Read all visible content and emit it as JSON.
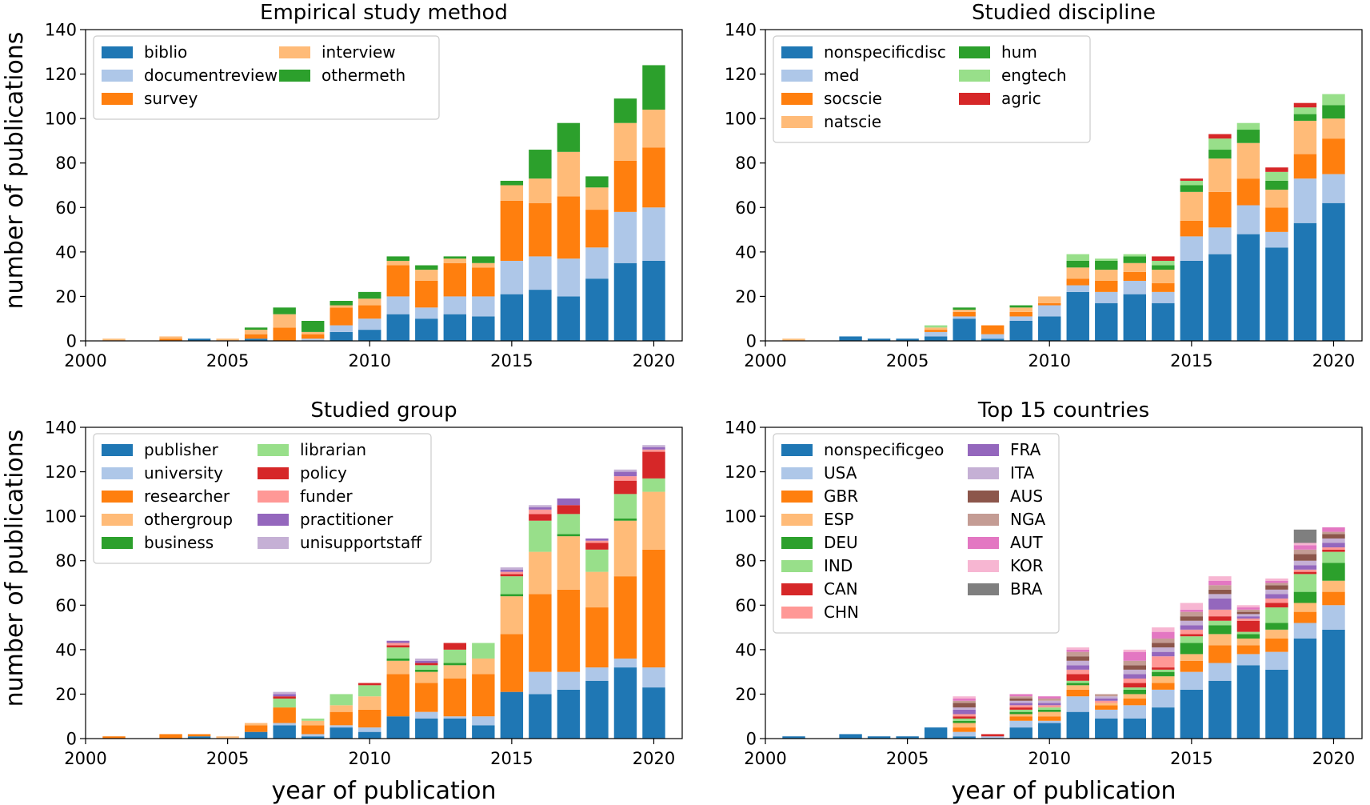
{
  "figure": {
    "ylabel": "number of publications",
    "xlabel": "year of publication"
  },
  "chart_data": [
    {
      "type": "bar",
      "stacked": true,
      "title": "Empirical study method",
      "xlim": [
        2000,
        2021
      ],
      "ylim": [
        0,
        140
      ],
      "xticks": [
        2000,
        2005,
        2010,
        2015,
        2020
      ],
      "yticks": [
        0,
        20,
        40,
        60,
        80,
        100,
        120,
        140
      ],
      "legend": {
        "location": "top-left",
        "ncol": 2
      },
      "x": [
        2001,
        2002,
        2003,
        2004,
        2005,
        2006,
        2007,
        2008,
        2009,
        2010,
        2011,
        2012,
        2013,
        2014,
        2015,
        2016,
        2017,
        2018,
        2019,
        2020
      ],
      "series": [
        {
          "name": "biblio",
          "color": "#1f77b4",
          "values": [
            0,
            0,
            0,
            1,
            0,
            1,
            0,
            0,
            4,
            5,
            12,
            10,
            12,
            11,
            21,
            23,
            20,
            28,
            35,
            36
          ]
        },
        {
          "name": "documentreview",
          "color": "#aec7e8",
          "values": [
            0,
            0,
            0,
            0,
            0,
            0,
            0,
            1,
            3,
            5,
            8,
            5,
            8,
            9,
            15,
            15,
            17,
            14,
            23,
            24
          ]
        },
        {
          "name": "survey",
          "color": "#ff7f0e",
          "values": [
            0,
            0,
            1,
            0,
            0,
            2,
            6,
            2,
            8,
            6,
            14,
            12,
            15,
            13,
            27,
            24,
            28,
            17,
            23,
            27
          ]
        },
        {
          "name": "interview",
          "color": "#ffbb78",
          "values": [
            1,
            0,
            1,
            0,
            1,
            2,
            6,
            1,
            1,
            3,
            2,
            5,
            2,
            2,
            7,
            11,
            20,
            10,
            17,
            17
          ]
        },
        {
          "name": "othermeth",
          "color": "#2ca02c",
          "values": [
            0,
            0,
            0,
            0,
            0,
            1,
            3,
            5,
            2,
            3,
            2,
            2,
            1,
            3,
            2,
            13,
            13,
            5,
            11,
            20
          ]
        }
      ]
    },
    {
      "type": "bar",
      "stacked": true,
      "title": "Studied discipline",
      "xlim": [
        2000,
        2021
      ],
      "ylim": [
        0,
        140
      ],
      "xticks": [
        2000,
        2005,
        2010,
        2015,
        2020
      ],
      "yticks": [
        0,
        20,
        40,
        60,
        80,
        100,
        120,
        140
      ],
      "legend": {
        "location": "top-left",
        "ncol": 2
      },
      "x": [
        2001,
        2002,
        2003,
        2004,
        2005,
        2006,
        2007,
        2008,
        2009,
        2010,
        2011,
        2012,
        2013,
        2014,
        2015,
        2016,
        2017,
        2018,
        2019,
        2020
      ],
      "series": [
        {
          "name": "nonspecificdisc",
          "color": "#1f77b4",
          "values": [
            0,
            0,
            2,
            1,
            1,
            2,
            10,
            1,
            9,
            11,
            22,
            17,
            21,
            17,
            36,
            39,
            48,
            42,
            53,
            62
          ]
        },
        {
          "name": "med",
          "color": "#aec7e8",
          "values": [
            0,
            0,
            0,
            0,
            0,
            2,
            1,
            2,
            2,
            5,
            3,
            5,
            6,
            5,
            11,
            12,
            13,
            7,
            20,
            13
          ]
        },
        {
          "name": "socscie",
          "color": "#ff7f0e",
          "values": [
            0,
            0,
            0,
            0,
            0,
            1,
            2,
            4,
            2,
            1,
            3,
            5,
            4,
            4,
            7,
            16,
            12,
            11,
            11,
            16
          ]
        },
        {
          "name": "natscie",
          "color": "#ffbb78",
          "values": [
            1,
            0,
            0,
            0,
            0,
            1,
            1,
            0,
            2,
            3,
            5,
            5,
            4,
            6,
            13,
            15,
            16,
            8,
            15,
            9
          ]
        },
        {
          "name": "hum",
          "color": "#2ca02c",
          "values": [
            0,
            0,
            0,
            0,
            0,
            0,
            1,
            0,
            1,
            0,
            3,
            4,
            3,
            2,
            3,
            4,
            6,
            4,
            3,
            6
          ]
        },
        {
          "name": "engtech",
          "color": "#98df8a",
          "values": [
            0,
            0,
            0,
            0,
            0,
            1,
            0,
            0,
            0,
            0,
            3,
            1,
            1,
            2,
            2,
            5,
            3,
            4,
            3,
            5
          ]
        },
        {
          "name": "agric",
          "color": "#d62728",
          "values": [
            0,
            0,
            0,
            0,
            0,
            0,
            0,
            0,
            0,
            0,
            0,
            0,
            0,
            2,
            1,
            2,
            0,
            2,
            2,
            0
          ]
        }
      ]
    },
    {
      "type": "bar",
      "stacked": true,
      "title": "Studied group",
      "xlim": [
        2000,
        2021
      ],
      "ylim": [
        0,
        140
      ],
      "xticks": [
        2000,
        2005,
        2010,
        2015,
        2020
      ],
      "yticks": [
        0,
        20,
        40,
        60,
        80,
        100,
        120,
        140
      ],
      "legend": {
        "location": "top-left",
        "ncol": 2
      },
      "x": [
        2001,
        2002,
        2003,
        2004,
        2005,
        2006,
        2007,
        2008,
        2009,
        2010,
        2011,
        2012,
        2013,
        2014,
        2015,
        2016,
        2017,
        2018,
        2019,
        2020
      ],
      "series": [
        {
          "name": "publisher",
          "color": "#1f77b4",
          "values": [
            0,
            0,
            0,
            1,
            0,
            3,
            6,
            1,
            5,
            3,
            10,
            9,
            9,
            6,
            21,
            20,
            22,
            26,
            32,
            23
          ]
        },
        {
          "name": "university",
          "color": "#aec7e8",
          "values": [
            0,
            0,
            0,
            0,
            0,
            0,
            1,
            1,
            1,
            2,
            0,
            3,
            1,
            4,
            0,
            10,
            8,
            6,
            4,
            9
          ]
        },
        {
          "name": "researcher",
          "color": "#ff7f0e",
          "values": [
            1,
            0,
            2,
            1,
            0,
            3,
            7,
            4,
            6,
            8,
            19,
            13,
            17,
            19,
            26,
            35,
            37,
            27,
            37,
            53
          ]
        },
        {
          "name": "othergroup",
          "color": "#ffbb78",
          "values": [
            0,
            0,
            0,
            0,
            1,
            1,
            0,
            2,
            3,
            6,
            6,
            5,
            6,
            7,
            17,
            19,
            24,
            16,
            25,
            26
          ]
        },
        {
          "name": "business",
          "color": "#2ca02c",
          "values": [
            0,
            0,
            0,
            0,
            0,
            0,
            0,
            0,
            0,
            0,
            1,
            1,
            1,
            0,
            1,
            0,
            1,
            0,
            1,
            0
          ]
        },
        {
          "name": "librarian",
          "color": "#98df8a",
          "values": [
            0,
            0,
            0,
            0,
            0,
            0,
            4,
            1,
            5,
            5,
            5,
            2,
            6,
            7,
            8,
            14,
            9,
            10,
            11,
            6
          ]
        },
        {
          "name": "policy",
          "color": "#d62728",
          "values": [
            0,
            0,
            0,
            0,
            0,
            0,
            1,
            0,
            0,
            1,
            1,
            1,
            3,
            0,
            1,
            3,
            4,
            3,
            6,
            12
          ]
        },
        {
          "name": "funder",
          "color": "#ff9896",
          "values": [
            0,
            0,
            0,
            0,
            0,
            0,
            0,
            0,
            0,
            0,
            1,
            0,
            0,
            0,
            1,
            2,
            0,
            1,
            2,
            1
          ]
        },
        {
          "name": "practitioner",
          "color": "#9467bd",
          "values": [
            0,
            0,
            0,
            0,
            0,
            0,
            1,
            0,
            0,
            0,
            1,
            1,
            0,
            0,
            1,
            1,
            3,
            1,
            2,
            1
          ]
        },
        {
          "name": "unisupportstaff",
          "color": "#c5b0d5",
          "values": [
            0,
            0,
            0,
            0,
            0,
            0,
            1,
            0,
            0,
            0,
            0,
            1,
            0,
            0,
            1,
            1,
            0,
            0,
            1,
            1
          ]
        }
      ]
    },
    {
      "type": "bar",
      "stacked": true,
      "title": "Top 15 countries",
      "xlim": [
        2000,
        2021
      ],
      "ylim": [
        0,
        140
      ],
      "xticks": [
        2000,
        2005,
        2010,
        2015,
        2020
      ],
      "yticks": [
        0,
        20,
        40,
        60,
        80,
        100,
        120,
        140
      ],
      "legend": {
        "location": "top-left",
        "ncol": 2
      },
      "x": [
        2001,
        2002,
        2003,
        2004,
        2005,
        2006,
        2007,
        2008,
        2009,
        2010,
        2011,
        2012,
        2013,
        2014,
        2015,
        2016,
        2017,
        2018,
        2019,
        2020
      ],
      "series": [
        {
          "name": "nonspecificgeo",
          "color": "#1f77b4",
          "values": [
            1,
            0,
            2,
            1,
            1,
            5,
            1,
            0,
            5,
            7,
            12,
            9,
            9,
            14,
            22,
            26,
            33,
            31,
            45,
            49
          ]
        },
        {
          "name": "USA",
          "color": "#aec7e8",
          "values": [
            0,
            0,
            0,
            0,
            0,
            0,
            2,
            1,
            3,
            1,
            7,
            4,
            6,
            8,
            8,
            8,
            5,
            8,
            7,
            11
          ]
        },
        {
          "name": "GBR",
          "color": "#ff7f0e",
          "values": [
            0,
            0,
            0,
            0,
            0,
            0,
            2,
            0,
            2,
            2,
            3,
            2,
            3,
            3,
            5,
            8,
            4,
            6,
            5,
            6
          ]
        },
        {
          "name": "ESP",
          "color": "#ffbb78",
          "values": [
            0,
            0,
            0,
            0,
            0,
            0,
            2,
            0,
            1,
            2,
            2,
            1,
            2,
            3,
            3,
            5,
            3,
            4,
            4,
            5
          ]
        },
        {
          "name": "DEU",
          "color": "#2ca02c",
          "values": [
            0,
            0,
            0,
            0,
            0,
            0,
            1,
            0,
            1,
            1,
            1,
            0,
            2,
            2,
            5,
            4,
            2,
            3,
            5,
            8
          ]
        },
        {
          "name": "IND",
          "color": "#98df8a",
          "values": [
            0,
            0,
            0,
            0,
            0,
            0,
            1,
            0,
            1,
            1,
            1,
            0,
            1,
            1,
            3,
            2,
            1,
            7,
            8,
            5
          ]
        },
        {
          "name": "CAN",
          "color": "#d62728",
          "values": [
            0,
            0,
            0,
            0,
            0,
            0,
            1,
            1,
            1,
            0,
            3,
            0,
            2,
            1,
            1,
            2,
            5,
            2,
            1,
            1
          ]
        },
        {
          "name": "CHN",
          "color": "#ff9896",
          "values": [
            0,
            0,
            0,
            0,
            0,
            0,
            1,
            0,
            1,
            1,
            2,
            1,
            2,
            5,
            2,
            3,
            1,
            2,
            1,
            1
          ]
        },
        {
          "name": "FRA",
          "color": "#9467bd",
          "values": [
            0,
            0,
            0,
            0,
            0,
            0,
            2,
            0,
            1,
            1,
            2,
            1,
            2,
            2,
            2,
            5,
            1,
            2,
            2,
            2
          ]
        },
        {
          "name": "ITA",
          "color": "#c5b0d5",
          "values": [
            0,
            0,
            0,
            0,
            0,
            0,
            1,
            0,
            1,
            1,
            2,
            1,
            2,
            2,
            2,
            2,
            1,
            2,
            2,
            2
          ]
        },
        {
          "name": "AUS",
          "color": "#8c564b",
          "values": [
            0,
            0,
            0,
            0,
            0,
            0,
            2,
            0,
            1,
            0,
            2,
            0,
            2,
            2,
            2,
            2,
            1,
            2,
            3,
            2
          ]
        },
        {
          "name": "NGA",
          "color": "#c49c94",
          "values": [
            0,
            0,
            0,
            0,
            0,
            0,
            1,
            0,
            1,
            1,
            2,
            1,
            2,
            2,
            2,
            2,
            1,
            1,
            2,
            1
          ]
        },
        {
          "name": "AUT",
          "color": "#e377c2",
          "values": [
            0,
            0,
            0,
            0,
            0,
            0,
            1,
            0,
            1,
            1,
            1,
            0,
            4,
            3,
            1,
            2,
            1,
            1,
            2,
            2
          ]
        },
        {
          "name": "KOR",
          "color": "#f7b6d2",
          "values": [
            0,
            0,
            0,
            0,
            0,
            0,
            1,
            0,
            0,
            0,
            1,
            0,
            1,
            2,
            3,
            2,
            1,
            1,
            1,
            0
          ]
        },
        {
          "name": "BRA",
          "color": "#7f7f7f",
          "values": [
            0,
            0,
            0,
            0,
            0,
            0,
            0,
            0,
            0,
            0,
            0,
            0,
            0,
            0,
            0,
            0,
            0,
            0,
            6,
            0
          ]
        }
      ]
    }
  ]
}
